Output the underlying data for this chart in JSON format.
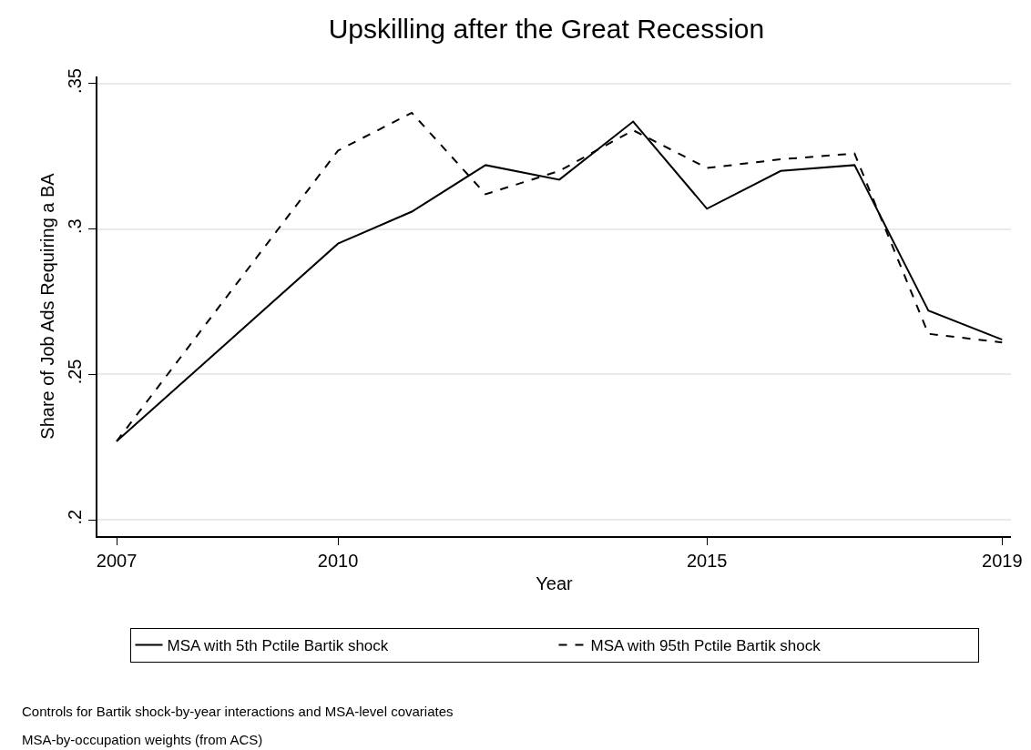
{
  "chart_data": {
    "type": "line",
    "title": "Upskilling after the Great Recession",
    "xlabel": "Year",
    "ylabel": "Share of Job Ads Requiring a BA",
    "x": [
      2007,
      2010,
      2011,
      2012,
      2013,
      2014,
      2015,
      2016,
      2017,
      2018,
      2019
    ],
    "series": [
      {
        "name": "MSA with 5th Pctile Bartik shock",
        "color": "#000000",
        "line_style": "solid",
        "values": [
          0.227,
          0.295,
          0.306,
          0.322,
          0.317,
          0.337,
          0.307,
          0.32,
          0.322,
          0.272,
          0.262
        ]
      },
      {
        "name": "MSA with 95th Pctile Bartik shock",
        "color": "#000000",
        "line_style": "dashed",
        "values": [
          0.227,
          0.327,
          0.34,
          0.312,
          0.32,
          0.334,
          0.321,
          0.324,
          0.326,
          0.264,
          0.261
        ]
      }
    ],
    "xlim": [
      2006.74,
      2019.12
    ],
    "xticks": [
      2007,
      2010,
      2015,
      2019
    ],
    "ylim": [
      0.1944,
      0.3525
    ],
    "yticks": [
      {
        "value": 0.2,
        "label": ".2"
      },
      {
        "value": 0.25,
        "label": ".25"
      },
      {
        "value": 0.3,
        "label": ".3"
      },
      {
        "value": 0.35,
        "label": ".35"
      }
    ],
    "grid": "y",
    "legend": "bottom",
    "marker": "none",
    "annotations": [
      "Controls for Bartik shock-by-year interactions and MSA-level covariates",
      "MSA-by-occupation weights (from ACS)"
    ]
  }
}
